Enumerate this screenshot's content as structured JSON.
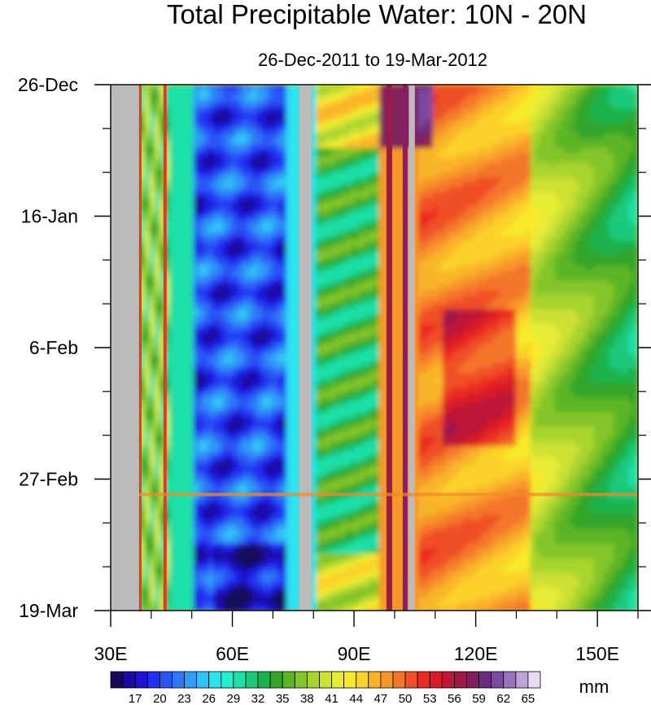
{
  "chart_data": {
    "type": "heatmap",
    "title": "Total Precipitable Water: 10N - 20N",
    "subtitle": "26-Dec-2011 to 19-Mar-2012",
    "xlim": [
      30,
      160
    ],
    "x_ticks": [
      {
        "value": 30,
        "label": "30E"
      },
      {
        "value": 60,
        "label": "60E"
      },
      {
        "value": 90,
        "label": "90E"
      },
      {
        "value": 120,
        "label": "120E"
      },
      {
        "value": 150,
        "label": "150E"
      }
    ],
    "y_range_days": [
      0,
      84
    ],
    "y_ticks": [
      {
        "value": 0,
        "label": "26-Dec"
      },
      {
        "value": 21,
        "label": "16-Jan"
      },
      {
        "value": 42,
        "label": "6-Feb"
      },
      {
        "value": 63,
        "label": "27-Feb"
      },
      {
        "value": 84,
        "label": "19-Mar"
      }
    ],
    "y_minor_ticks": [
      7,
      14,
      28,
      35,
      49,
      56,
      70,
      77
    ],
    "x_minor_ticks": [
      40,
      50,
      70,
      80,
      100,
      110,
      130,
      140,
      160
    ],
    "colorbar": {
      "levels": [
        14,
        15.5,
        17,
        18.5,
        20,
        21.5,
        23,
        24.5,
        26,
        27.5,
        29,
        30.5,
        32,
        33.5,
        35,
        36.5,
        38,
        39.5,
        41,
        42.5,
        44,
        45.5,
        47,
        48.5,
        50,
        51.5,
        53,
        54.5,
        56,
        57.5,
        59,
        60.5,
        62,
        63.5,
        65
      ],
      "labels": [
        "17",
        "20",
        "23",
        "26",
        "29",
        "32",
        "35",
        "38",
        "41",
        "44",
        "47",
        "50",
        "53",
        "56",
        "59",
        "62",
        "65"
      ],
      "units": "mm",
      "colors": [
        "#16085a",
        "#1a0aa0",
        "#1f12d4",
        "#2030f2",
        "#2a55f6",
        "#2e78f8",
        "#2f9cf7",
        "#30c4f6",
        "#2ee2ee",
        "#25edd0",
        "#1ee0a8",
        "#1cc97a",
        "#1cb24c",
        "#33a52a",
        "#5cb526",
        "#84c52a",
        "#a8d42e",
        "#cce035",
        "#e6ec35",
        "#f8e82a",
        "#fbd12c",
        "#f9b52a",
        "#f7962a",
        "#f4762a",
        "#f04f28",
        "#ec2a22",
        "#d81c28",
        "#bd1838",
        "#9e1848",
        "#81205e",
        "#6b2b80",
        "#7c4aa0",
        "#9a72bc",
        "#bea2d8",
        "#e8dcf2"
      ]
    },
    "missing_color": "#bbbbbb"
  }
}
